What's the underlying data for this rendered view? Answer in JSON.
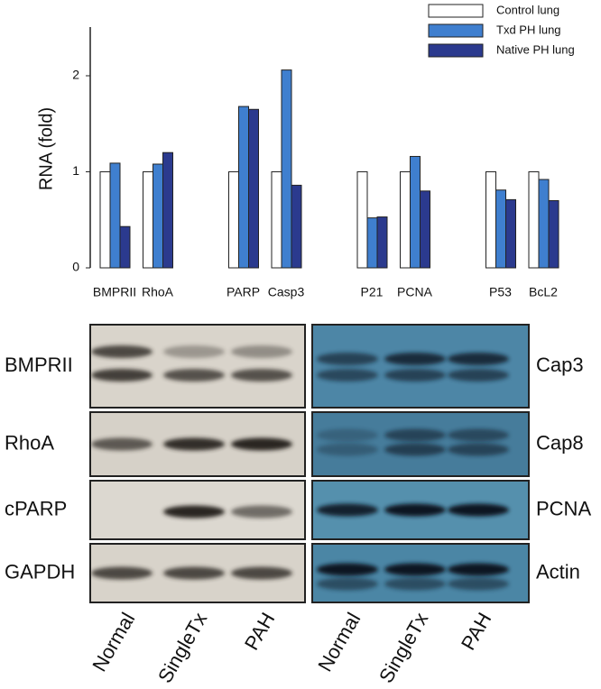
{
  "chart_data": {
    "type": "bar",
    "y_label": "RNA  (fold)",
    "categories": [
      "BMPRII",
      "RhoA",
      null,
      "PARP",
      "Casp3",
      null,
      "P21",
      "PCNA",
      null,
      "P53",
      "BcL2"
    ],
    "series": [
      {
        "name": "Control lung",
        "color": "#ffffff",
        "values": [
          1,
          1,
          null,
          1,
          1,
          null,
          1,
          1,
          null,
          1,
          1
        ]
      },
      {
        "name": "Txd PH lung",
        "color": "#3f7fcf",
        "values": [
          1.09,
          1.08,
          null,
          1.68,
          2.06,
          null,
          0.52,
          1.16,
          null,
          0.81,
          0.92
        ]
      },
      {
        "name": "Native PH lung",
        "color": "#2b3a8e",
        "values": [
          0.43,
          1.2,
          null,
          1.65,
          0.86,
          null,
          0.53,
          0.8,
          null,
          0.71,
          0.7
        ]
      }
    ],
    "ylim": [
      0,
      2.5
    ],
    "yticks": [
      0,
      1,
      2
    ],
    "grid": false,
    "legend": "top-right"
  },
  "blots": {
    "left": {
      "rows": [
        "BMPRII",
        "RhoA",
        "cPARP",
        "GAPDH"
      ],
      "lanes": [
        "Normal",
        "SingleTx",
        "PAH"
      ]
    },
    "right": {
      "rows": [
        "Cap3",
        "Cap8",
        "PCNA",
        "Actin"
      ],
      "lanes": [
        "Normal",
        "SingleTx",
        "PAH"
      ]
    }
  }
}
